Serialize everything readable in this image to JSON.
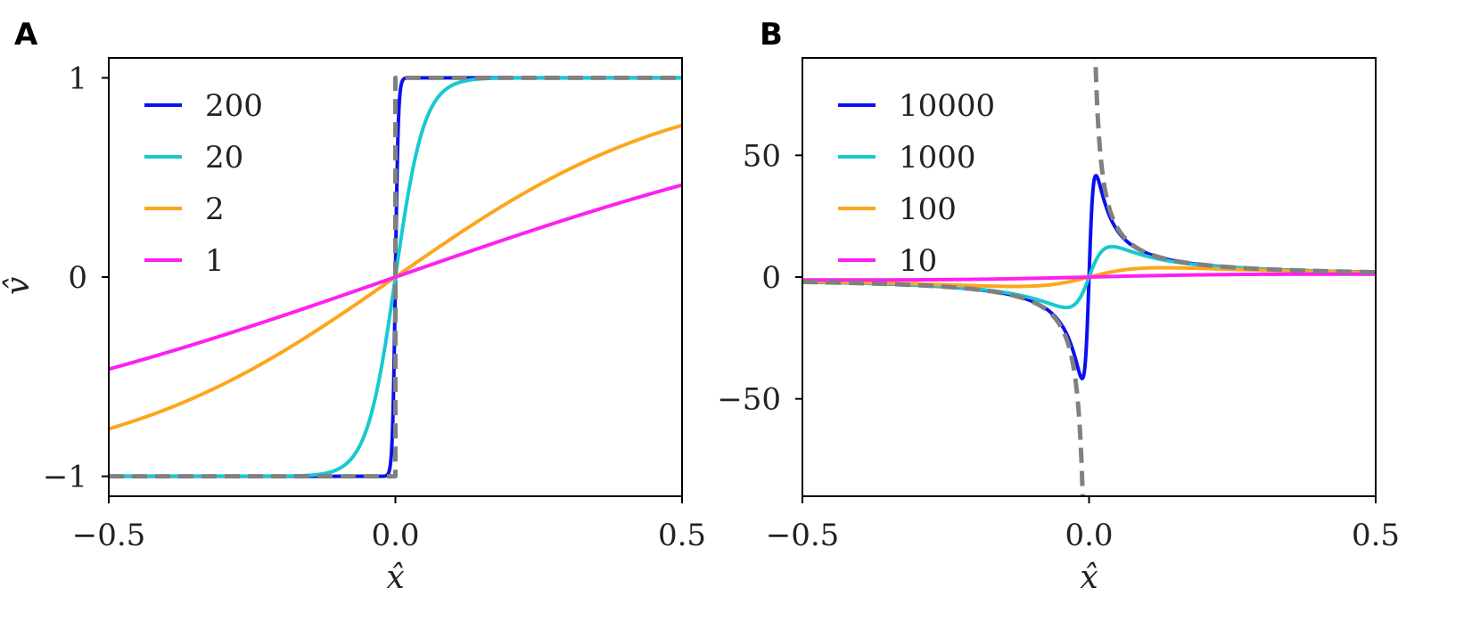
{
  "chart_data": [
    {
      "panel": "A",
      "type": "line",
      "title": "",
      "xlabel": "x̂",
      "ylabel": "v̂",
      "xlim": [
        -0.5,
        0.5
      ],
      "ylim": [
        -1.1,
        1.1
      ],
      "xticks": [
        -0.5,
        0.0,
        0.5
      ],
      "xtick_labels": [
        "−0.5",
        "0.0",
        "0.5"
      ],
      "yticks": [
        -1,
        0,
        1
      ],
      "ytick_labels": [
        "−1",
        "0",
        "1"
      ],
      "grid": false,
      "legend_position": "top-left",
      "series": [
        {
          "name": "200",
          "color": "#0b10f0",
          "style": "solid",
          "model": "tanh",
          "k": 200
        },
        {
          "name": "20",
          "color": "#17c9d0",
          "style": "solid",
          "model": "tanh",
          "k": 20
        },
        {
          "name": "2",
          "color": "#fda61d",
          "style": "solid",
          "model": "tanh",
          "k": 2
        },
        {
          "name": "1",
          "color": "#ff1ff0",
          "style": "solid",
          "model": "tanh",
          "k": 1
        },
        {
          "name": "",
          "color": "#808080",
          "style": "dashed",
          "model": "sign",
          "legend": false
        }
      ]
    },
    {
      "panel": "B",
      "type": "line",
      "title": "",
      "xlabel": "x̂",
      "ylabel": "",
      "xlim": [
        -0.5,
        0.5
      ],
      "ylim": [
        -90,
        90
      ],
      "xticks": [
        -0.5,
        0.0,
        0.5
      ],
      "xtick_labels": [
        "−0.5",
        "0.0",
        "0.5"
      ],
      "yticks": [
        -50,
        0,
        50
      ],
      "ytick_labels": [
        "−50",
        "0",
        "50"
      ],
      "grid": false,
      "legend_position": "top-left",
      "series": [
        {
          "name": "10000",
          "color": "#0b10f0",
          "style": "solid",
          "model": "peak",
          "a": 0.012
        },
        {
          "name": "1000",
          "color": "#17c9d0",
          "style": "solid",
          "model": "peak",
          "a": 0.04
        },
        {
          "name": "100",
          "color": "#fda61d",
          "style": "solid",
          "model": "peak",
          "a": 0.13
        },
        {
          "name": "10",
          "color": "#ff1ff0",
          "style": "solid",
          "model": "peak",
          "a": 0.42
        },
        {
          "name": "",
          "color": "#808080",
          "style": "dashed",
          "model": "reciprocal",
          "legend": false
        }
      ]
    }
  ]
}
